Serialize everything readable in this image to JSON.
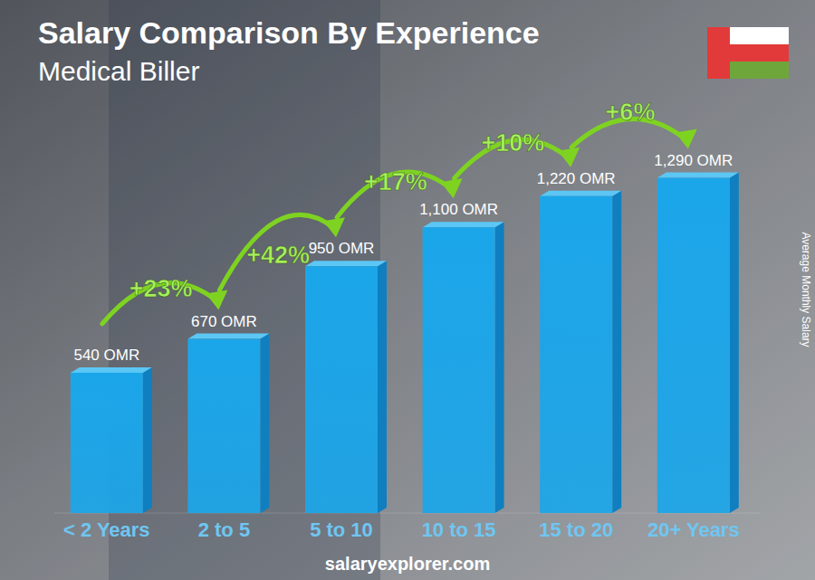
{
  "chart_data": {
    "type": "bar",
    "title": "Salary Comparison By Experience",
    "subtitle": "Medical Biller",
    "y_label": "Average Monthly Salary",
    "categories": [
      "< 2 Years",
      "2 to 5",
      "5 to 10",
      "10 to 15",
      "15 to 20",
      "20+ Years"
    ],
    "values": [
      540,
      670,
      950,
      1100,
      1220,
      1290
    ],
    "value_labels": [
      "540 OMR",
      "670 OMR",
      "950 OMR",
      "1,100 OMR",
      "1,220 OMR",
      "1,290 OMR"
    ],
    "data_labels": true,
    "color": "#1ba6ea",
    "ylim": [
      0,
      1400
    ],
    "tick_labels": "x",
    "grid": false,
    "annotations": [
      "+23%",
      "+42%",
      "+17%",
      "+10%",
      "+6%"
    ],
    "source": "salaryexplorer.com"
  }
}
